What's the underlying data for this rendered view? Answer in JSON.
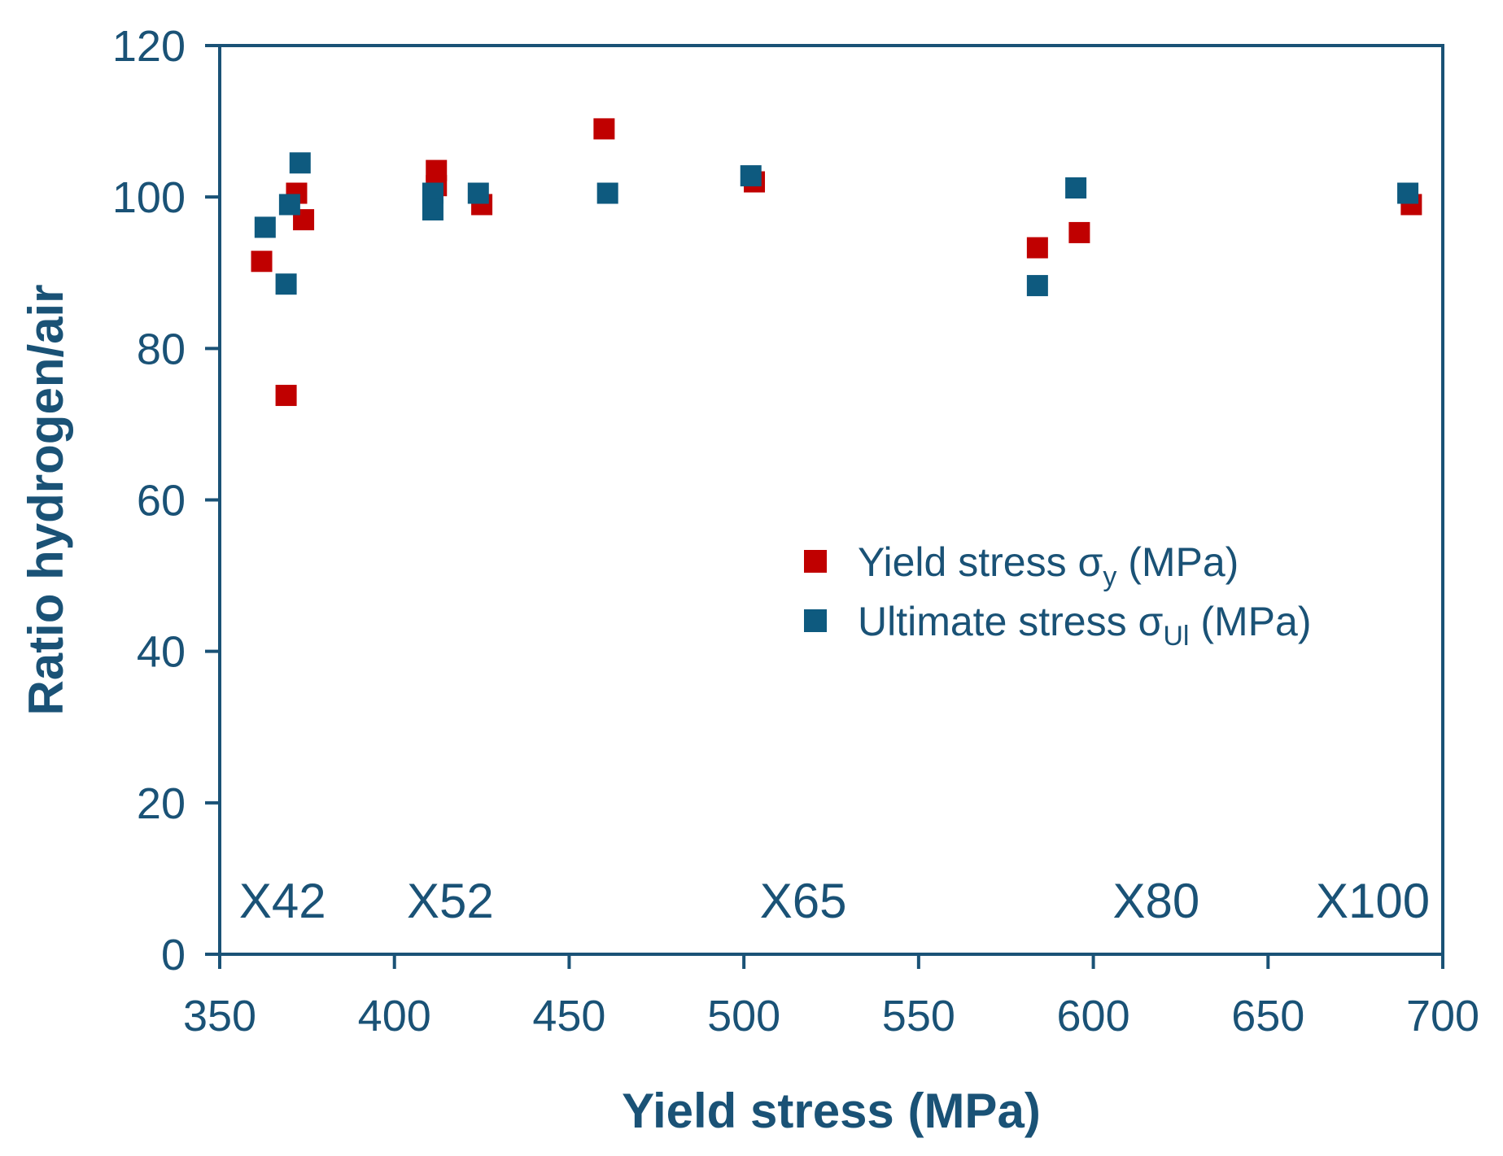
{
  "colors": {
    "axis": "#1A5276",
    "text": "#1A5276",
    "yield_series": "#C00000",
    "ultimate_series": "#0E5A7F"
  },
  "chart_data": {
    "type": "scatter",
    "title": "",
    "xlabel": "Yield stress (MPa)",
    "ylabel": "Ratio hydrogen/air",
    "xlim": [
      350,
      700
    ],
    "ylim": [
      0,
      120
    ],
    "xticks": [
      "350",
      "400",
      "450",
      "500",
      "550",
      "600",
      "650",
      "700"
    ],
    "yticks": [
      "0",
      "20",
      "40",
      "60",
      "80",
      "100",
      "120"
    ],
    "grid": false,
    "legend_position": "center-right",
    "series": [
      {
        "name": "Yield stress σy (MPa)",
        "legend_main": "Yield stress σ",
        "legend_sub": "y",
        "legend_tail": " (MPa)",
        "color_key": "yield_series",
        "points": [
          {
            "x": 362,
            "y": 91.5
          },
          {
            "x": 369,
            "y": 73.8
          },
          {
            "x": 372,
            "y": 100.5
          },
          {
            "x": 374,
            "y": 97
          },
          {
            "x": 412,
            "y": 103.5
          },
          {
            "x": 412,
            "y": 101.5
          },
          {
            "x": 425,
            "y": 99
          },
          {
            "x": 460,
            "y": 109
          },
          {
            "x": 503,
            "y": 102
          },
          {
            "x": 584,
            "y": 93.3
          },
          {
            "x": 596,
            "y": 95.3
          },
          {
            "x": 691,
            "y": 99
          }
        ]
      },
      {
        "name": "Ultimate stress σUl (MPa)",
        "legend_main": "Ultimate stress σ",
        "legend_sub": "Ul",
        "legend_tail": " (MPa)",
        "color_key": "ultimate_series",
        "points": [
          {
            "x": 363,
            "y": 96
          },
          {
            "x": 369,
            "y": 88.5
          },
          {
            "x": 370,
            "y": 99
          },
          {
            "x": 373,
            "y": 104.5
          },
          {
            "x": 411,
            "y": 100.5
          },
          {
            "x": 411,
            "y": 98.3
          },
          {
            "x": 424,
            "y": 100.5
          },
          {
            "x": 461,
            "y": 100.5
          },
          {
            "x": 502,
            "y": 102.8
          },
          {
            "x": 584,
            "y": 88.3
          },
          {
            "x": 595,
            "y": 101.2
          },
          {
            "x": 690,
            "y": 100.5
          }
        ]
      }
    ],
    "annotations": [
      {
        "text": "X42",
        "x": 368,
        "y": 7
      },
      {
        "text": "X52",
        "x": 416,
        "y": 7
      },
      {
        "text": "X65",
        "x": 517,
        "y": 7
      },
      {
        "text": "X80",
        "x": 618,
        "y": 7
      },
      {
        "text": "X100",
        "x": 680,
        "y": 7
      }
    ]
  }
}
